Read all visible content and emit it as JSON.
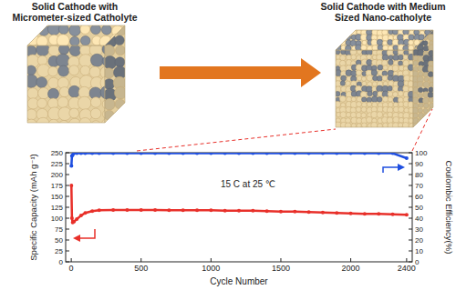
{
  "illustration": {
    "left_title": "Solid Cathode with Micrometer-sized Catholyte",
    "right_title": "Solid Cathode with Medium Sized Nano-catholyte"
  },
  "chart_data": {
    "type": "line",
    "x": [
      1,
      5,
      10,
      20,
      40,
      70,
      100,
      150,
      200,
      300,
      400,
      500,
      600,
      700,
      800,
      900,
      1000,
      1100,
      1200,
      1300,
      1400,
      1500,
      1600,
      1700,
      1800,
      1900,
      2000,
      2100,
      2200,
      2300,
      2400
    ],
    "xlim": [
      -40,
      2440
    ],
    "xticks": [
      0,
      500,
      1000,
      1500,
      2000,
      2400
    ],
    "ylim": [
      0,
      250
    ],
    "yticks": [
      0,
      25,
      50,
      75,
      100,
      125,
      150,
      175,
      200,
      225,
      250
    ],
    "y2lim": [
      0,
      100
    ],
    "y2ticks": [
      0,
      10,
      20,
      30,
      40,
      50,
      60,
      70,
      80,
      90,
      100
    ],
    "xlabel": "Cycle Number",
    "ylabel": "Specific Capacity (mAh g⁻¹)",
    "y2label": "Coulombic Efficiency(%)",
    "annotation": "15 C at 25 ℃",
    "grid": false,
    "series": [
      {
        "color": "#e8302a",
        "marker": "circle",
        "values": [
          175,
          100,
          90,
          92,
          98,
          106,
          112,
          116,
          118,
          119,
          119,
          119,
          119,
          118,
          118,
          118,
          118,
          117,
          117,
          117,
          116,
          115,
          115,
          114,
          113,
          112,
          111,
          110,
          110,
          109,
          108
        ]
      },
      {
        "color": "#1f4fe0",
        "marker": "circle",
        "axis": "y2",
        "values": [
          88,
          97,
          98,
          99.5,
          99.5,
          99.5,
          99.5,
          99.5,
          99.5,
          99.5,
          99.5,
          99.5,
          99.5,
          99.5,
          99.5,
          99.5,
          99.5,
          99.5,
          99.5,
          99.5,
          99.5,
          99.5,
          99.5,
          99.5,
          99.5,
          99.5,
          99.5,
          99.5,
          99.5,
          99.5,
          95
        ]
      }
    ]
  }
}
